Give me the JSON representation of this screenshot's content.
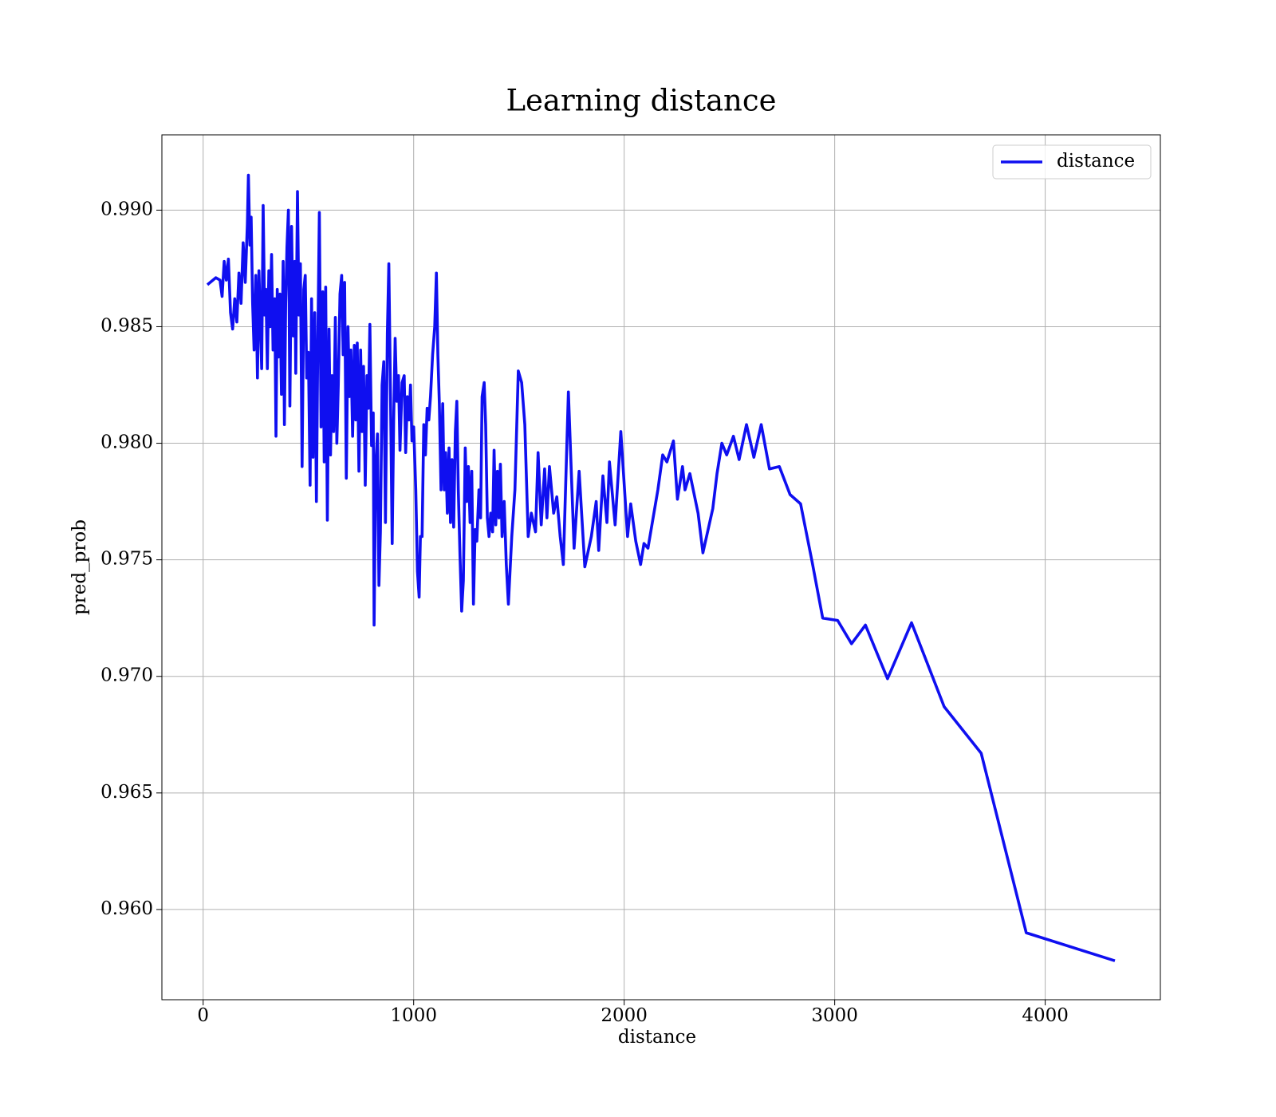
{
  "chart_data": {
    "type": "line",
    "title": "Learning distance",
    "xlabel": "distance",
    "ylabel": "pred_prob",
    "x": [
      20,
      60,
      80,
      90,
      100,
      110,
      120,
      130,
      140,
      150,
      160,
      170,
      180,
      190,
      200,
      210,
      215,
      222,
      228,
      235,
      242,
      250,
      258,
      265,
      272,
      278,
      285,
      292,
      298,
      305,
      312,
      318,
      325,
      332,
      340,
      346,
      352,
      358,
      365,
      372,
      380,
      386,
      392,
      398,
      405,
      412,
      420,
      428,
      435,
      440,
      448,
      455,
      462,
      470,
      478,
      485,
      492,
      500,
      508,
      515,
      522,
      530,
      538,
      545,
      552,
      560,
      568,
      575,
      582,
      590,
      598,
      605,
      612,
      620,
      628,
      635,
      642,
      650,
      658,
      665,
      672,
      680,
      688,
      695,
      702,
      710,
      718,
      725,
      732,
      740,
      748,
      755,
      762,
      770,
      778,
      785,
      792,
      800,
      808,
      812,
      820,
      828,
      835,
      842,
      850,
      858,
      866,
      875,
      882,
      890,
      898,
      905,
      912,
      920,
      928,
      935,
      945,
      955,
      962,
      970,
      978,
      985,
      992,
      1000,
      1010,
      1018,
      1026,
      1032,
      1040,
      1048,
      1056,
      1064,
      1072,
      1080,
      1090,
      1100,
      1108,
      1115,
      1122,
      1130,
      1138,
      1145,
      1152,
      1160,
      1168,
      1175,
      1182,
      1190,
      1198,
      1205,
      1212,
      1220,
      1228,
      1236,
      1245,
      1252,
      1260,
      1268,
      1276,
      1284,
      1292,
      1300,
      1310,
      1318,
      1325,
      1335,
      1342,
      1350,
      1358,
      1366,
      1375,
      1382,
      1390,
      1398,
      1405,
      1412,
      1420,
      1430,
      1440,
      1450,
      1466,
      1481,
      1497,
      1513,
      1528,
      1544,
      1559,
      1579,
      1591,
      1606,
      1622,
      1633,
      1645,
      1665,
      1680,
      1696,
      1711,
      1735,
      1762,
      1786,
      1813,
      1844,
      1867,
      1879,
      1899,
      1918,
      1930,
      1957,
      1984,
      2016,
      2031,
      2055,
      2078,
      2094,
      2113,
      2160,
      2183,
      2203,
      2234,
      2253,
      2277,
      2289,
      2312,
      2351,
      2374,
      2421,
      2441,
      2464,
      2487,
      2519,
      2546,
      2581,
      2616,
      2651,
      2690,
      2737,
      2788,
      2838,
      2893,
      2943,
      3014,
      3080,
      3146,
      3251,
      3365,
      3520,
      3696,
      3910,
      4331
    ],
    "xlim": [
      -196,
      4547
    ],
    "xticks": [
      0,
      1000,
      2000,
      3000,
      4000
    ],
    "ylim": [
      0.95613,
      0.99323
    ],
    "yticks": [
      {
        "value": 0.96,
        "label": "0.960"
      },
      0.965,
      {
        "value": 0.97,
        "label": "0.970"
      },
      0.975,
      {
        "value": 0.98,
        "label": "0.980"
      },
      0.985,
      {
        "value": 0.99,
        "label": "0.990"
      }
    ],
    "grid": true,
    "legend": "upper right",
    "series": [
      {
        "name": "distance",
        "color": "#0f0ff0",
        "values": [
          0.9868,
          0.9871,
          0.987,
          0.9863,
          0.9878,
          0.987,
          0.9879,
          0.9856,
          0.9849,
          0.9862,
          0.9852,
          0.9873,
          0.986,
          0.9886,
          0.9869,
          0.9894,
          0.9915,
          0.9885,
          0.9897,
          0.986,
          0.984,
          0.9872,
          0.9828,
          0.9874,
          0.9851,
          0.9832,
          0.9902,
          0.9855,
          0.9866,
          0.9832,
          0.9874,
          0.985,
          0.9881,
          0.984,
          0.9862,
          0.9803,
          0.9866,
          0.9837,
          0.9864,
          0.9821,
          0.9878,
          0.9808,
          0.986,
          0.9884,
          0.99,
          0.9816,
          0.9893,
          0.9846,
          0.9878,
          0.983,
          0.9908,
          0.9855,
          0.9877,
          0.979,
          0.9866,
          0.9872,
          0.9828,
          0.9839,
          0.9782,
          0.9862,
          0.9794,
          0.9856,
          0.9775,
          0.9846,
          0.9899,
          0.9807,
          0.9865,
          0.9792,
          0.9867,
          0.9767,
          0.9849,
          0.9795,
          0.9829,
          0.9805,
          0.9854,
          0.98,
          0.9825,
          0.9864,
          0.9872,
          0.9838,
          0.9869,
          0.9785,
          0.985,
          0.982,
          0.984,
          0.9803,
          0.9842,
          0.981,
          0.9843,
          0.9788,
          0.984,
          0.9805,
          0.9833,
          0.9782,
          0.9829,
          0.9815,
          0.9851,
          0.9799,
          0.9813,
          0.9722,
          0.9791,
          0.9804,
          0.9739,
          0.9762,
          0.9825,
          0.9835,
          0.9766,
          0.9847,
          0.9877,
          0.982,
          0.9757,
          0.981,
          0.9845,
          0.9818,
          0.9829,
          0.9797,
          0.9826,
          0.9829,
          0.9796,
          0.982,
          0.981,
          0.9825,
          0.9801,
          0.9807,
          0.978,
          0.9745,
          0.9734,
          0.976,
          0.976,
          0.9808,
          0.9795,
          0.9815,
          0.981,
          0.982,
          0.9838,
          0.985,
          0.9873,
          0.9838,
          0.9817,
          0.978,
          0.9817,
          0.978,
          0.9796,
          0.977,
          0.9798,
          0.9766,
          0.9793,
          0.9764,
          0.9805,
          0.9818,
          0.978,
          0.9752,
          0.9728,
          0.9741,
          0.9798,
          0.9775,
          0.979,
          0.9766,
          0.9788,
          0.9731,
          0.9763,
          0.9758,
          0.978,
          0.9768,
          0.982,
          0.9826,
          0.9808,
          0.9768,
          0.976,
          0.977,
          0.9762,
          0.9797,
          0.9765,
          0.9788,
          0.9768,
          0.9791,
          0.976,
          0.9775,
          0.9748,
          0.9731,
          0.976,
          0.978,
          0.9831,
          0.9826,
          0.9808,
          0.976,
          0.977,
          0.9762,
          0.9796,
          0.9765,
          0.9789,
          0.9768,
          0.979,
          0.977,
          0.9777,
          0.976,
          0.9748,
          0.9822,
          0.9755,
          0.9788,
          0.9747,
          0.976,
          0.9775,
          0.9754,
          0.9786,
          0.9766,
          0.9792,
          0.9765,
          0.9805,
          0.976,
          0.9774,
          0.9758,
          0.9748,
          0.9757,
          0.9755,
          0.978,
          0.9795,
          0.9792,
          0.9801,
          0.9776,
          0.979,
          0.978,
          0.9787,
          0.977,
          0.9753,
          0.9772,
          0.9787,
          0.98,
          0.9795,
          0.9803,
          0.9793,
          0.9808,
          0.9794,
          0.9808,
          0.9789,
          0.979,
          0.9778,
          0.9774,
          0.9749,
          0.9725,
          0.9724,
          0.9714,
          0.9722,
          0.9699,
          0.9723,
          0.9687,
          0.9667,
          0.959,
          0.9578
        ]
      }
    ]
  }
}
